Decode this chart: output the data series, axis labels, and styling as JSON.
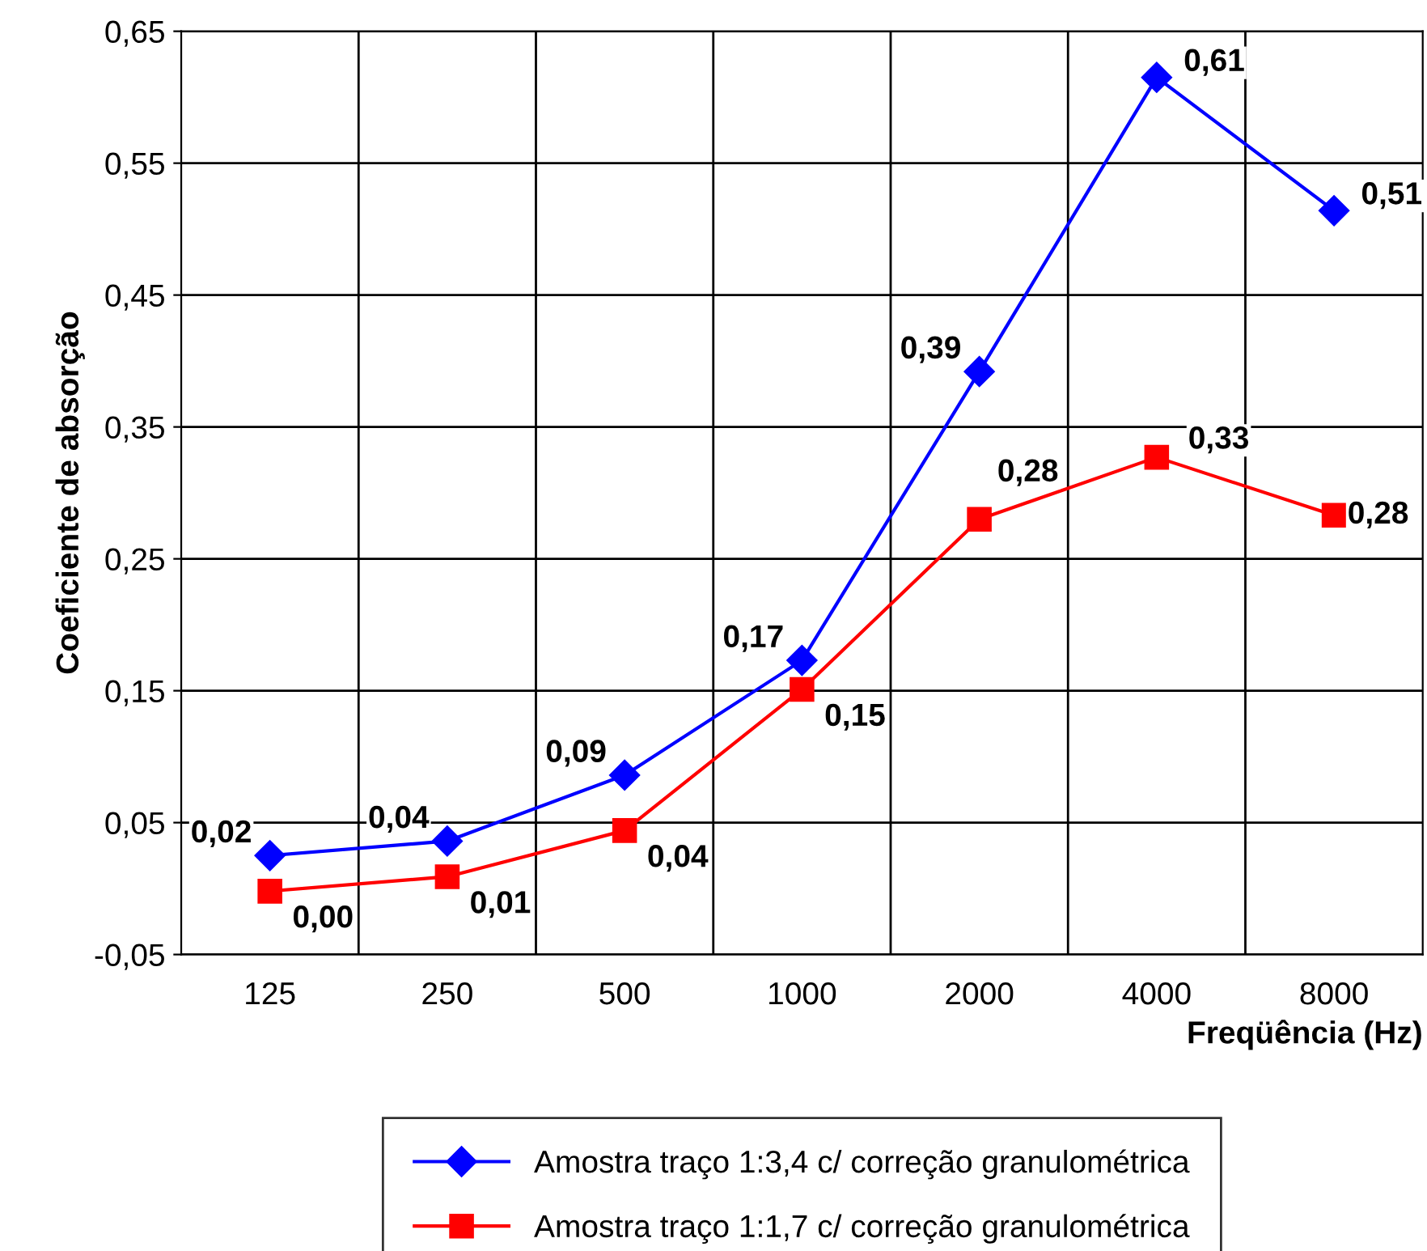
{
  "chart_data": {
    "type": "line",
    "xlabel": "Freqüência (Hz)",
    "ylabel": "Coeficiente de absorção",
    "categories": [
      "125",
      "250",
      "500",
      "1000",
      "2000",
      "4000",
      "8000"
    ],
    "series": [
      {
        "name": "Amostra traço 1:3,4 c/ correção granulométrica",
        "color": "#0000ff",
        "marker": "diamond",
        "values": [
          0.025,
          0.036,
          0.086,
          0.173,
          0.392,
          0.615,
          0.514
        ],
        "value_labels": [
          "0,02",
          "0,04",
          "0,09",
          "0,17",
          "0,39",
          "0,61",
          "0,51"
        ]
      },
      {
        "name": "Amostra traço 1:1,7 c/ correção granulométrica",
        "color": "#ff0000",
        "marker": "square",
        "values": [
          -0.002,
          0.009,
          0.044,
          0.151,
          0.28,
          0.327,
          0.283
        ],
        "value_labels": [
          "0,00",
          "0,01",
          "0,04",
          "0,15",
          "0,28",
          "0,33",
          "0,28"
        ]
      }
    ],
    "ylim": [
      -0.05,
      0.65
    ],
    "yticks": [
      {
        "value": -0.05,
        "label": "-0,05"
      },
      {
        "value": 0.05,
        "label": "0,05"
      },
      {
        "value": 0.15,
        "label": "0,15"
      },
      {
        "value": 0.25,
        "label": "0,25"
      },
      {
        "value": 0.35,
        "label": "0,35"
      },
      {
        "value": 0.45,
        "label": "0,45"
      },
      {
        "value": 0.55,
        "label": "0,55"
      },
      {
        "value": 0.65,
        "label": "0,65"
      }
    ],
    "grid": true,
    "legend": "bottom",
    "line_style": "solid"
  }
}
